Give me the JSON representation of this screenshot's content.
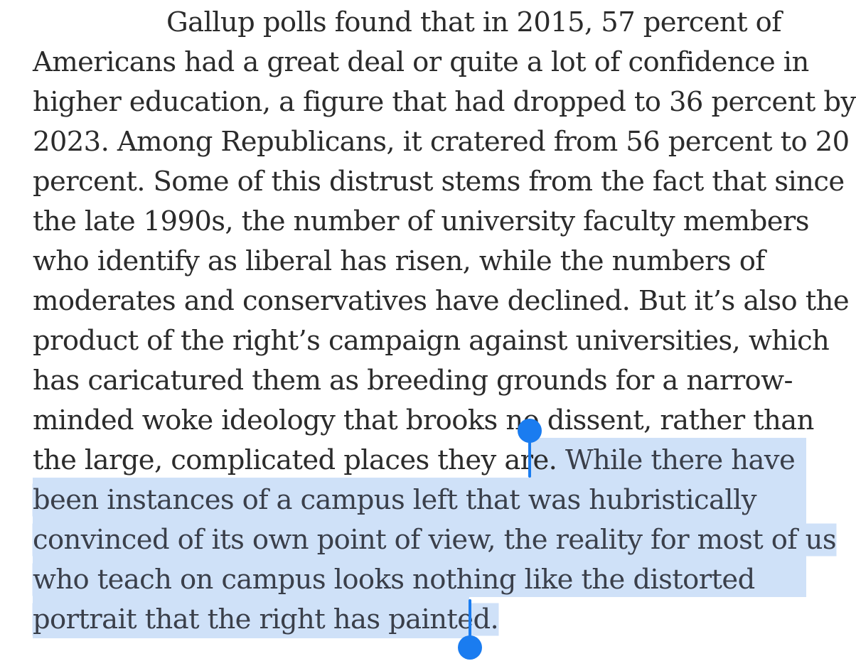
{
  "article": {
    "lines": [
      "Gallup polls found that in 2015, 57 percent of",
      "Americans had a great deal or quite a lot of confidence in",
      "higher education, a figure that had dropped to 36 percent by",
      "2023. Among Republicans, it cratered from 56 percent to 20",
      "percent. Some of this distrust stems from the fact that since",
      "the late 1990s, the number of university faculty members",
      "who identify as liberal has risen, while the numbers of",
      "moderates and conservatives have declined. But it’s also the",
      "product of the right’s campaign against universities, which",
      "has caricatured them as breeding grounds for a narrow-",
      "minded woke ideology that brooks no dissent, rather than",
      "the large, complicated places they are. "
    ],
    "selected_lines": [
      "While there have",
      "been instances of a campus left that was hubristically",
      "convinced of its own point of view, the reality for most of us",
      "who teach on campus looks nothing like the distorted",
      "portrait that the right has painted."
    ]
  },
  "colors": {
    "text": "#2b2b2b",
    "selection_highlight": "#cfe1f8",
    "selection_handle": "#1a7cf0"
  }
}
